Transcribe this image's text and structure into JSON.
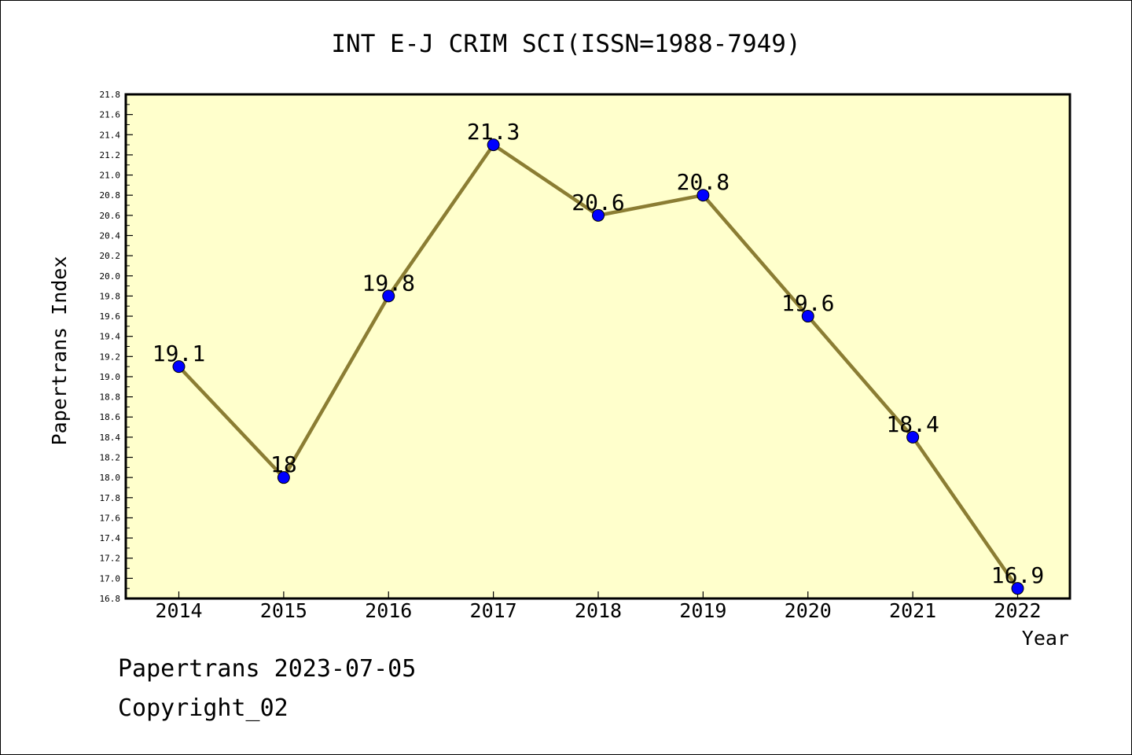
{
  "colors": {
    "plot_background": "#ffffcc",
    "line": "#8b7d33",
    "marker": "#0000ff",
    "text": "#000000"
  },
  "chart_data": {
    "type": "line",
    "title": "INT E-J CRIM SCI(ISSN=1988-7949)",
    "xlabel": "Year",
    "ylabel": "Papertrans Index",
    "categories": [
      "2014",
      "2015",
      "2016",
      "2017",
      "2018",
      "2019",
      "2020",
      "2021",
      "2022"
    ],
    "series": [
      {
        "values": [
          19.1,
          18.0,
          19.8,
          21.3,
          20.6,
          20.8,
          19.6,
          18.4,
          16.9
        ],
        "labels": [
          "19.1",
          "18",
          "19.8",
          "21.3",
          "20.6",
          "20.8",
          "19.6",
          "18.4",
          "16.9"
        ]
      }
    ],
    "ylim": [
      16.8,
      21.8
    ],
    "ytick_step": 0.2,
    "ytick_labels": [
      "16.8",
      "17.0",
      "17.2",
      "17.4",
      "17.6",
      "17.8",
      "18.0",
      "18.2",
      "18.4",
      "18.6",
      "18.8",
      "19.0",
      "19.2",
      "19.4",
      "19.6",
      "19.8",
      "20.0",
      "20.2",
      "20.4",
      "20.6",
      "20.8",
      "21.0",
      "21.2",
      "21.4",
      "21.6",
      "21.8"
    ],
    "grid": false,
    "legend": "none"
  },
  "footer": {
    "line1": "Papertrans 2023-07-05",
    "line2": "Copyright_02"
  }
}
